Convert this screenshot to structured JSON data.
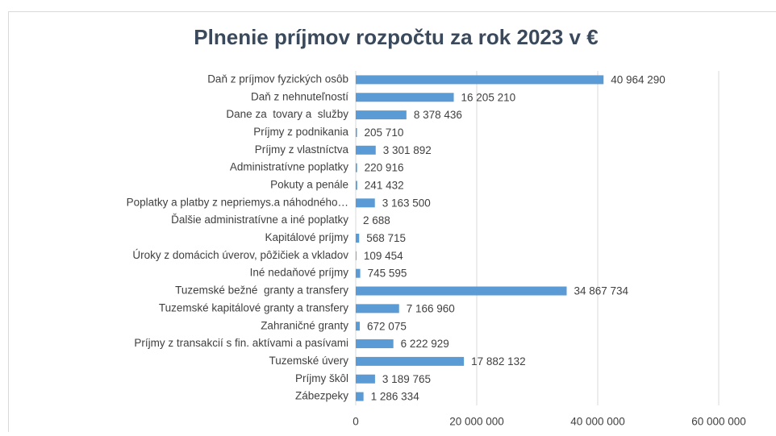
{
  "chart_data": {
    "type": "hbar",
    "title": "Plnenie príjmov rozpočtu za rok 2023 v €",
    "categories": [
      "Daň z príjmov fyzických osôb",
      "Daň z nehnuteľností",
      "Dane za  tovary a  služby",
      "Príjmy z podnikania",
      "Príjmy z vlastníctva",
      "Administratívne poplatky",
      "Pokuty a penále",
      "Poplatky a platby z nepriemys.a náhodného…",
      "Ďalšie administratívne a iné poplatky",
      "Kapitálové príjmy",
      "Úroky z domácich úverov, pôžičiek a vkladov",
      "Iné nedaňové príjmy",
      "Tuzemské bežné  granty a transfery",
      "Tuzemské kapitálové granty a transfery",
      "Zahraničné granty",
      "Príjmy z transakcií s fin. aktívami a pasívami",
      "Tuzemské úvery",
      "Príjmy škôl",
      "Zábezpeky"
    ],
    "values": [
      40964290,
      16205210,
      8378436,
      205710,
      3301892,
      220916,
      241432,
      3163500,
      2688,
      568715,
      109454,
      745595,
      34867734,
      7166960,
      672075,
      6222929,
      17882132,
      3189765,
      1286334
    ],
    "value_labels": [
      "40 964 290",
      "16 205 210",
      "8 378 436",
      "205 710",
      "3 301 892",
      "220 916",
      "241 432",
      "3 163 500",
      "2 688",
      "568 715",
      "109 454",
      "745 595",
      "34 867 734",
      "7 166 960",
      "672 075",
      "6 222 929",
      "17 882 132",
      "3 189 765",
      "1 286 334"
    ],
    "color": "#5b9bd5",
    "xlim": [
      0,
      60000000
    ],
    "xticks": [
      0,
      {
        "value": 20000000,
        "label": "20 000 000"
      },
      {
        "value": 40000000,
        "label": "40 000 000"
      },
      {
        "value": 60000000,
        "label": "60 000 000"
      }
    ],
    "grid": true
  }
}
